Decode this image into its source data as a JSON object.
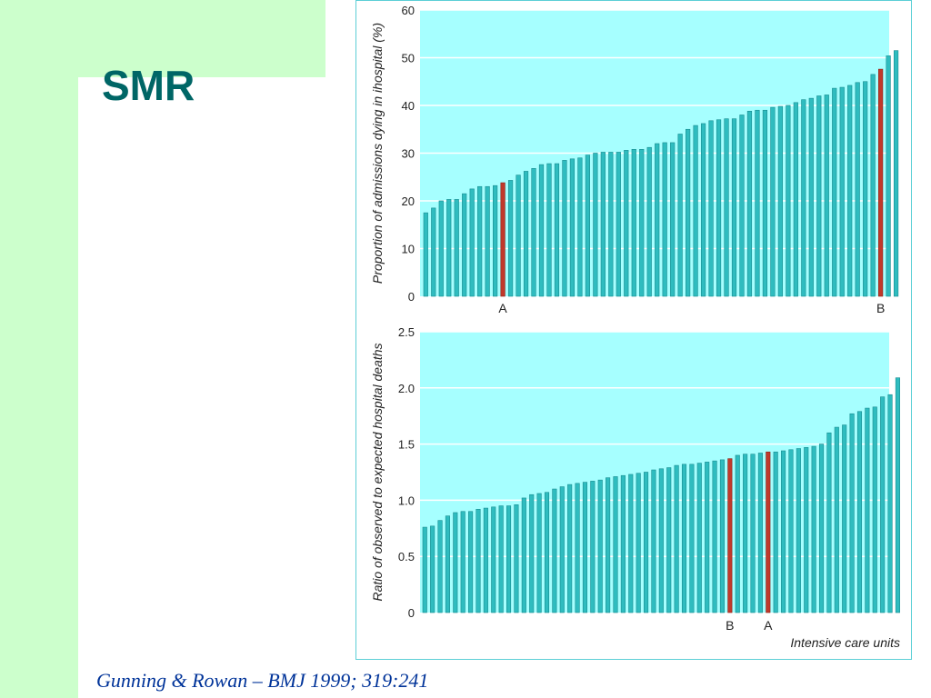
{
  "slide": {
    "title": "SMR",
    "citation": "Gunning & Rowan – BMJ 1999; 319:241",
    "colors": {
      "title": "#006666",
      "citation": "#003399",
      "background_accent": "#ccffcc",
      "plot_background": "#a6ffff",
      "bar_fill": "#2fbcbf",
      "bar_highlight": "#c0392b"
    }
  },
  "chart_data": [
    {
      "type": "bar",
      "ylabel": "Proportion of admissions dying in ihospital (%)",
      "ylim": [
        0,
        60
      ],
      "yticks": [
        0,
        10,
        20,
        30,
        40,
        50,
        60
      ],
      "grid": true,
      "values": [
        17.5,
        18.5,
        20,
        20.3,
        20.3,
        21.5,
        22.5,
        23,
        23,
        23.2,
        23.8,
        24.3,
        25.4,
        26.2,
        26.8,
        27.6,
        27.8,
        27.8,
        28.5,
        28.8,
        29,
        29.6,
        30,
        30.2,
        30.2,
        30.2,
        30.6,
        30.8,
        30.8,
        31.2,
        32,
        32.2,
        32.2,
        34,
        35,
        35.8,
        36.2,
        36.8,
        37,
        37.2,
        37.2,
        38,
        38.8,
        39,
        39,
        39.6,
        39.8,
        40,
        40.6,
        41.2,
        41.5,
        42,
        42.2,
        43.6,
        43.8,
        44.2,
        44.8,
        45,
        46.5,
        47.6,
        50.4,
        51.5
      ],
      "highlights": [
        {
          "index": 10,
          "label": "A"
        },
        {
          "index": 59,
          "label": "B"
        }
      ]
    },
    {
      "type": "bar",
      "ylabel": "Ratio of observed to expected hospital deaths",
      "xlabel": "Intensive care units",
      "ylim": [
        0,
        2.5
      ],
      "yticks": [
        "0",
        "0.5",
        "1.0",
        "1.5",
        "2.0",
        "2.5"
      ],
      "grid": true,
      "values": [
        0.76,
        0.77,
        0.82,
        0.86,
        0.89,
        0.9,
        0.9,
        0.92,
        0.93,
        0.94,
        0.95,
        0.95,
        0.96,
        1.02,
        1.05,
        1.06,
        1.07,
        1.1,
        1.12,
        1.14,
        1.15,
        1.16,
        1.17,
        1.18,
        1.2,
        1.21,
        1.22,
        1.23,
        1.24,
        1.25,
        1.27,
        1.28,
        1.29,
        1.31,
        1.32,
        1.32,
        1.33,
        1.34,
        1.35,
        1.36,
        1.37,
        1.4,
        1.41,
        1.41,
        1.42,
        1.43,
        1.43,
        1.44,
        1.45,
        1.46,
        1.47,
        1.48,
        1.5,
        1.6,
        1.65,
        1.67,
        1.77,
        1.79,
        1.82,
        1.83,
        1.92,
        1.94,
        2.09
      ],
      "highlights": [
        {
          "index": 40,
          "label": "B"
        },
        {
          "index": 45,
          "label": "A"
        }
      ]
    }
  ]
}
